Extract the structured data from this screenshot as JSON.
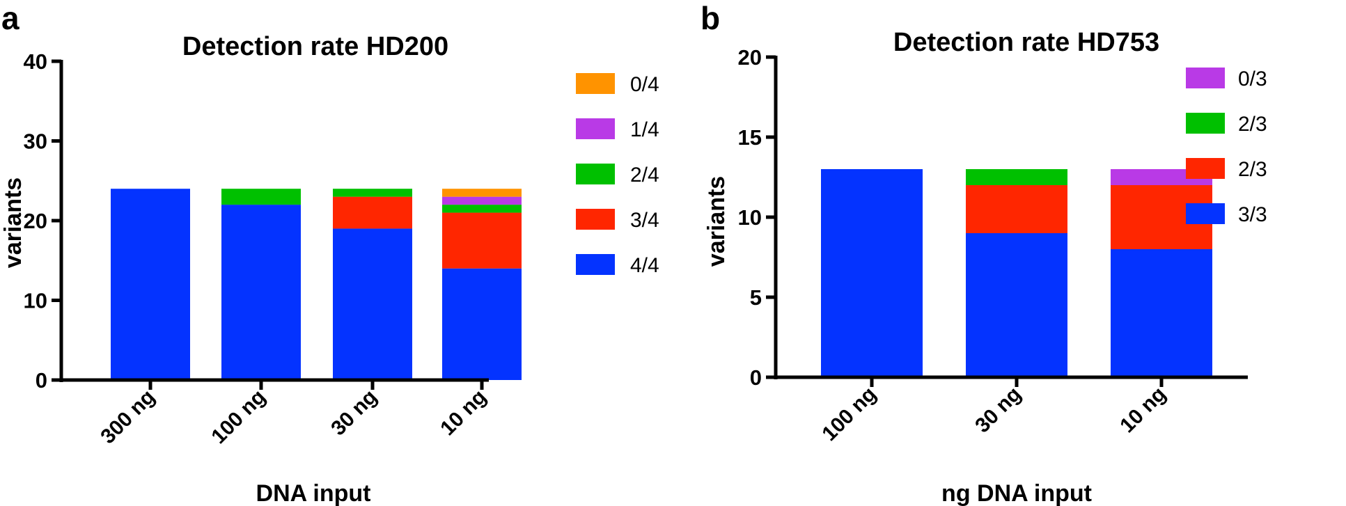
{
  "panels": [
    {
      "label": "a"
    },
    {
      "label": "b"
    }
  ],
  "chart_data": [
    {
      "type": "bar",
      "stacked": true,
      "title": "Detection rate HD200",
      "xlabel": "DNA input",
      "ylabel": "variants",
      "ylim": [
        0,
        40
      ],
      "yticks": [
        0,
        10,
        20,
        30,
        40
      ],
      "categories": [
        "300 ng",
        "100 ng",
        "30 ng",
        "10 ng"
      ],
      "series": [
        {
          "name": "4/4",
          "color": "#0433ff",
          "values": [
            24,
            22,
            19,
            14
          ]
        },
        {
          "name": "3/4",
          "color": "#ff2600",
          "values": [
            0,
            0,
            4,
            7
          ]
        },
        {
          "name": "2/4",
          "color": "#00c000",
          "values": [
            0,
            2,
            1,
            1
          ]
        },
        {
          "name": "1/4",
          "color": "#b93ae6",
          "values": [
            0,
            0,
            0,
            1
          ]
        },
        {
          "name": "0/4",
          "color": "#ff9300",
          "values": [
            0,
            0,
            0,
            1
          ]
        }
      ],
      "legend_order": [
        "0/4",
        "1/4",
        "2/4",
        "3/4",
        "4/4"
      ]
    },
    {
      "type": "bar",
      "stacked": true,
      "title": "Detection rate HD753",
      "xlabel": "ng DNA input",
      "ylabel": "variants",
      "ylim": [
        0,
        20
      ],
      "yticks": [
        0,
        5,
        10,
        15,
        20
      ],
      "categories": [
        "100 ng",
        "30 ng",
        "10 ng"
      ],
      "series": [
        {
          "name": "3/3",
          "color": "#0433ff",
          "values": [
            13,
            9,
            8
          ]
        },
        {
          "name": "2/3",
          "color": "#ff2600",
          "values": [
            0,
            3,
            4
          ]
        },
        {
          "name": "2/3",
          "color": "#00c000",
          "values": [
            0,
            1,
            0
          ]
        },
        {
          "name": "0/3",
          "color": "#b93ae6",
          "values": [
            0,
            0,
            1
          ]
        }
      ],
      "legend_order": [
        "0/3",
        "2/3",
        "2/3",
        "3/3"
      ]
    }
  ]
}
